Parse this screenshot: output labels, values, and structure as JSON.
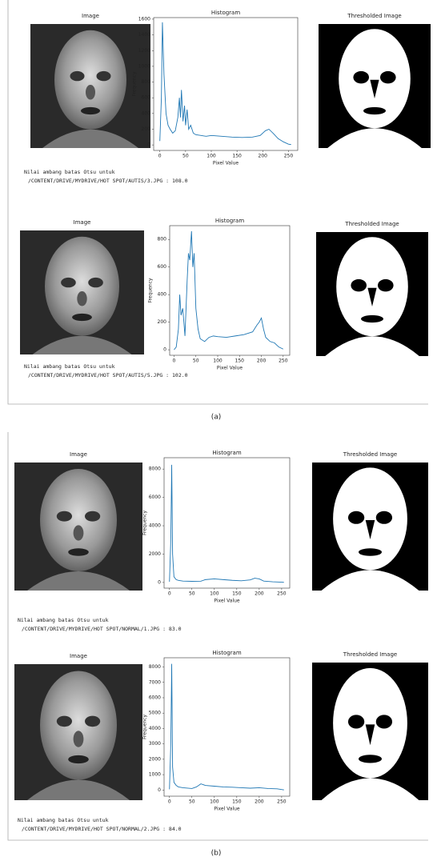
{
  "chart_data": [
    {
      "type": "line",
      "title": "Histogram",
      "x_label": "Pixel Value",
      "y_label": "Frequency",
      "x": [
        0,
        3,
        5,
        8,
        12,
        16,
        20,
        25,
        30,
        35,
        38,
        40,
        42,
        45,
        48,
        50,
        53,
        56,
        60,
        65,
        70,
        80,
        90,
        100,
        120,
        140,
        160,
        180,
        195,
        205,
        212,
        220,
        230,
        240,
        250,
        255
      ],
      "series": [
        {
          "color": "#1f77b4",
          "values": [
            50,
            600,
            1560,
            900,
            400,
            250,
            200,
            150,
            180,
            350,
            600,
            350,
            700,
            300,
            500,
            250,
            450,
            200,
            250,
            150,
            130,
            120,
            110,
            120,
            110,
            100,
            95,
            100,
            120,
            180,
            200,
            150,
            80,
            40,
            10,
            5
          ]
        }
      ],
      "xlim": [
        -12,
        268
      ],
      "ylim": [
        -70,
        1620
      ],
      "xticks": [
        0,
        50,
        100,
        150,
        200,
        250
      ],
      "yticks": [
        0,
        200,
        400,
        600,
        800,
        1000,
        1200,
        1400,
        1600
      ]
    },
    {
      "type": "line",
      "title": "Histogram",
      "x_label": "Pixel Value",
      "y_label": "Frequency",
      "x": [
        0,
        5,
        10,
        13,
        16,
        20,
        25,
        30,
        33,
        36,
        40,
        43,
        46,
        50,
        55,
        60,
        70,
        80,
        90,
        100,
        120,
        140,
        160,
        180,
        190,
        195,
        200,
        205,
        210,
        220,
        230,
        240,
        250
      ],
      "series": [
        {
          "color": "#1f77b4",
          "values": [
            0,
            20,
            150,
            400,
            250,
            300,
            100,
            500,
            700,
            650,
            860,
            600,
            700,
            300,
            150,
            80,
            60,
            90,
            100,
            95,
            90,
            100,
            110,
            130,
            180,
            200,
            230,
            150,
            90,
            60,
            50,
            20,
            5
          ]
        }
      ],
      "xlim": [
        -10,
        265
      ],
      "ylim": [
        -40,
        900
      ],
      "xticks": [
        0,
        50,
        100,
        150,
        200,
        250
      ],
      "yticks": [
        0,
        200,
        400,
        600,
        800
      ]
    },
    {
      "type": "line",
      "title": "Histogram",
      "x_label": "Pixel Value",
      "y_label": "Frequency",
      "x": [
        0,
        3,
        5,
        7,
        10,
        15,
        20,
        30,
        50,
        70,
        80,
        100,
        120,
        140,
        160,
        180,
        190,
        200,
        210,
        230,
        250,
        255
      ],
      "series": [
        {
          "color": "#1f77b4",
          "values": [
            50,
            3000,
            8300,
            2000,
            400,
            200,
            150,
            100,
            80,
            90,
            200,
            250,
            200,
            150,
            120,
            180,
            300,
            250,
            100,
            50,
            20,
            10
          ]
        }
      ],
      "xlim": [
        -12,
        268
      ],
      "ylim": [
        -400,
        8800
      ],
      "xticks": [
        0,
        50,
        100,
        150,
        200,
        250
      ],
      "yticks": [
        0,
        2000,
        4000,
        6000,
        8000
      ]
    },
    {
      "type": "line",
      "title": "Histogram",
      "x_label": "Pixel Value",
      "y_label": "Frequency",
      "x": [
        0,
        3,
        5,
        7,
        10,
        15,
        20,
        30,
        50,
        60,
        70,
        80,
        100,
        120,
        140,
        160,
        180,
        200,
        220,
        240,
        250,
        255
      ],
      "series": [
        {
          "color": "#1f77b4",
          "values": [
            50,
            3000,
            8200,
            1500,
            500,
            300,
            200,
            150,
            100,
            200,
            400,
            300,
            250,
            200,
            180,
            150,
            120,
            150,
            100,
            80,
            30,
            10
          ]
        }
      ],
      "xlim": [
        -12,
        268
      ],
      "ylim": [
        -400,
        8600
      ],
      "xticks": [
        0,
        50,
        100,
        150,
        200,
        250
      ],
      "yticks": [
        0,
        1000,
        2000,
        3000,
        4000,
        5000,
        6000,
        7000,
        8000
      ]
    }
  ],
  "rows": [
    {
      "image_title": "Image",
      "thresholded_title": "Thresholded Image",
      "caption_line1": "Nilai ambang batas Otsu untuk",
      "caption_line2": "/CONTENT/DRIVE/MYDRIVE/HOT SPOT/AUTIS/3.JPG : 108.0"
    },
    {
      "image_title": "Image",
      "thresholded_title": "Thresholded Image",
      "caption_line1": "Nilai ambang batas Otsu untuk",
      "caption_line2": "/CONTENT/DRIVE/MYDRIVE/HOT SPOT/AUTIS/5.JPG : 102.0"
    },
    {
      "image_title": "Image",
      "thresholded_title": "Thresholded Image",
      "caption_line1": "Nilai ambang batas Otsu untuk",
      "caption_line2": "/CONTENT/DRIVE/MYDRIVE/HOT SPOT/NORMAL/1.JPG : 83.0"
    },
    {
      "image_title": "Image",
      "thresholded_title": "Thresholded Image",
      "caption_line1": "Nilai ambang batas Otsu untuk",
      "caption_line2": "/CONTENT/DRIVE/MYDRIVE/HOT SPOT/NORMAL/2.JPG : 84.0"
    }
  ],
  "panel_labels": [
    "(a)",
    "(b)"
  ]
}
